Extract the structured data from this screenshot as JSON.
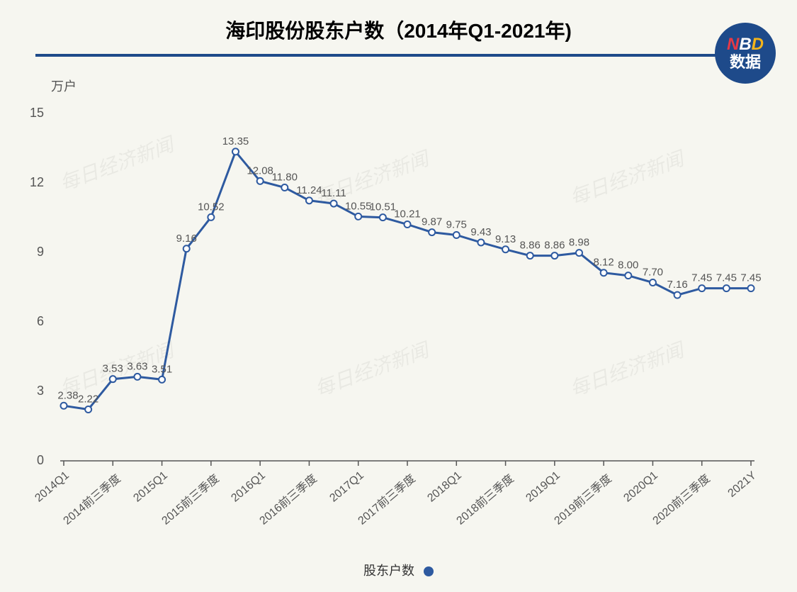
{
  "chart": {
    "type": "line",
    "title": "海印股份股东户数（2014年Q1-2021年)",
    "y_axis_label": "万户",
    "legend_label": "股东户数",
    "background_color": "#f6f6f0",
    "title_underline_color": "#1e4a8a",
    "line_color": "#2e5aa0",
    "marker_fill": "#ffffff",
    "marker_stroke": "#2e5aa0",
    "marker_radius": 4.5,
    "axis_color": "#555555",
    "label_color": "#333333",
    "value_label_color": "#555555",
    "line_width": 3,
    "ylim": [
      0,
      15
    ],
    "yticks": [
      0,
      3,
      6,
      9,
      12,
      15
    ],
    "x_labels": [
      "2014Q1",
      "2014前三季度",
      "2015Q1",
      "2015前三季度",
      "2016Q1",
      "2016前三季度",
      "2017Q1",
      "2017前三季度",
      "2018Q1",
      "2018前三季度",
      "2019Q1",
      "2019前三季度",
      "2020Q1",
      "2020前三季度",
      "2021Y"
    ],
    "x_label_indices": [
      0,
      2,
      4,
      6,
      8,
      10,
      12,
      14,
      16,
      18,
      20,
      22,
      24,
      26,
      28
    ],
    "values": [
      2.38,
      2.22,
      3.53,
      3.63,
      3.51,
      9.16,
      10.52,
      13.35,
      12.08,
      11.8,
      11.24,
      11.11,
      10.55,
      10.51,
      10.21,
      9.87,
      9.75,
      9.43,
      9.13,
      8.86,
      8.86,
      8.98,
      8.12,
      8.0,
      7.7,
      7.16,
      7.45,
      7.45,
      7.45
    ],
    "value_labels": [
      "2.38",
      "2.22",
      "3.53",
      "3.63",
      "3.51",
      "9.16",
      "10.52",
      "13.35",
      "12.08",
      "11.80",
      "11.24",
      "11.11",
      "10.55",
      "10.51",
      "10.21",
      "9.87",
      "9.75",
      "9.43",
      "9.13",
      "8.86",
      "8.86",
      "8.98",
      "8.12",
      "8.00",
      "7.70",
      "7.16",
      "7.45",
      "7.45",
      "7.45"
    ]
  },
  "badge": {
    "line1_n": "N",
    "line1_b": "B",
    "line1_d": "D",
    "line2": "数据",
    "bg_color": "#1e4a8a"
  },
  "watermark_text": "每日经济新闻"
}
